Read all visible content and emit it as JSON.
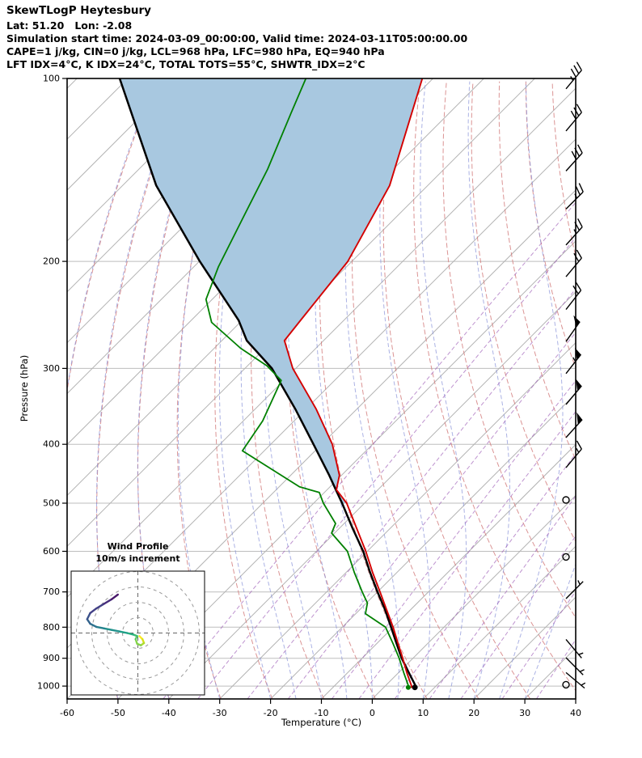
{
  "header": {
    "title": "SkewTLogP Heytesbury",
    "location": "Lat: 51.20   Lon: -2.08",
    "times": "Simulation start time: 2024-03-09_00:00:00, Valid time: 2024-03-11T05:00:00.00",
    "indices_line1": "CAPE=1 j/kg, CIN=0 j/kg, LCL=968 hPa, LFC=980 hPa, EQ=940 hPa",
    "indices_line2": "LFT IDX=4°C, K IDX=24°C, TOTAL TOTS=55°C, SHWTR_IDX=2°C"
  },
  "axes": {
    "xlabel": "Temperature (°C)",
    "ylabel": "Pressure (hPa)",
    "x_min": -60,
    "x_max": 40,
    "p_top": 100,
    "p_bottom": 1050,
    "x_ticks": [
      -60,
      -50,
      -40,
      -30,
      -20,
      -10,
      0,
      10,
      20,
      30,
      40
    ],
    "y_ticks": [
      100,
      200,
      300,
      400,
      500,
      600,
      700,
      800,
      900,
      1000
    ]
  },
  "chart_data": {
    "type": "line",
    "title": "SkewTLogP Heytesbury",
    "x_range_C": [
      -60,
      40
    ],
    "p_range_hPa": [
      1050,
      100
    ],
    "skew_angle_deg": 45,
    "grid": true,
    "series": [
      {
        "name": "temperature",
        "color": "#d40000",
        "width": 1.9,
        "points_p_hPa_T_C": [
          [
            1005,
            5.4
          ],
          [
            1000,
            5.2
          ],
          [
            950,
            1.6
          ],
          [
            900,
            -2.0
          ],
          [
            850,
            -5.9
          ],
          [
            800,
            -10.0
          ],
          [
            750,
            -14.6
          ],
          [
            700,
            -19.5
          ],
          [
            650,
            -24.8
          ],
          [
            600,
            -30.3
          ],
          [
            550,
            -36.6
          ],
          [
            500,
            -43.5
          ],
          [
            475,
            -48.2
          ],
          [
            450,
            -50.4
          ],
          [
            400,
            -57.9
          ],
          [
            350,
            -68.0
          ],
          [
            300,
            -80.6
          ],
          [
            270,
            -87.7
          ],
          [
            250,
            -88.5
          ],
          [
            200,
            -90.8
          ],
          [
            150,
            -97.5
          ],
          [
            100,
            -112.1
          ]
        ]
      },
      {
        "name": "dewpoint",
        "color": "#008000",
        "width": 1.8,
        "points_p_hPa_T_C": [
          [
            1005,
            4.8
          ],
          [
            1000,
            4.6
          ],
          [
            950,
            1.0
          ],
          [
            900,
            -2.7
          ],
          [
            850,
            -6.9
          ],
          [
            800,
            -11.5
          ],
          [
            760,
            -18.1
          ],
          [
            730,
            -19.8
          ],
          [
            700,
            -23.0
          ],
          [
            650,
            -28.4
          ],
          [
            600,
            -33.9
          ],
          [
            560,
            -40.6
          ],
          [
            540,
            -41.7
          ],
          [
            500,
            -48.1
          ],
          [
            480,
            -51.0
          ],
          [
            470,
            -56.0
          ],
          [
            410,
            -74.3
          ],
          [
            366,
            -76.2
          ],
          [
            314,
            -80.5
          ],
          [
            297,
            -86.2
          ],
          [
            278,
            -94.8
          ],
          [
            252,
            -105.6
          ],
          [
            231,
            -111.2
          ],
          [
            204,
            -115.2
          ],
          [
            170,
            -119.9
          ],
          [
            141,
            -124.7
          ],
          [
            114,
            -131.1
          ],
          [
            100,
            -135.0
          ]
        ]
      },
      {
        "name": "parcel",
        "color": "#000000",
        "width": 2.5,
        "points_p_hPa_T_C": [
          [
            1005,
            6.1
          ],
          [
            1000,
            6.0
          ],
          [
            950,
            2.0
          ],
          [
            900,
            -2.2
          ],
          [
            850,
            -6.2
          ],
          [
            800,
            -10.4
          ],
          [
            750,
            -14.9
          ],
          [
            700,
            -20.0
          ],
          [
            650,
            -25.3
          ],
          [
            600,
            -30.8
          ],
          [
            550,
            -37.4
          ],
          [
            500,
            -44.4
          ],
          [
            475,
            -48.3
          ],
          [
            450,
            -52.4
          ],
          [
            400,
            -61.6
          ],
          [
            350,
            -72.1
          ],
          [
            300,
            -84.7
          ],
          [
            270,
            -95.1
          ],
          [
            250,
            -100.7
          ],
          [
            200,
            -119.9
          ],
          [
            150,
            -143.4
          ],
          [
            100,
            -171.6
          ]
        ]
      }
    ],
    "shaded_region": {
      "between": [
        "parcel",
        "temperature"
      ],
      "p_from": 500,
      "p_to": 100,
      "color": "#a8c8e0",
      "opacity": 1
    },
    "wind_barbs_units": "m/s",
    "wind_barbs": [
      {
        "p": 104,
        "speed": 35,
        "dir": 40
      },
      {
        "p": 122,
        "speed": 30,
        "dir": 40
      },
      {
        "p": 142,
        "speed": 30,
        "dir": 42
      },
      {
        "p": 164,
        "speed": 25,
        "dir": 45
      },
      {
        "p": 188,
        "speed": 25,
        "dir": 42
      },
      {
        "p": 212,
        "speed": 20,
        "dir": 40
      },
      {
        "p": 240,
        "speed": 20,
        "dir": 38
      },
      {
        "p": 271,
        "speed": 50,
        "dir": 35
      },
      {
        "p": 306,
        "speed": 55,
        "dir": 38
      },
      {
        "p": 344,
        "speed": 50,
        "dir": 40
      },
      {
        "p": 390,
        "speed": 50,
        "dir": 42
      },
      {
        "p": 437,
        "speed": 15,
        "dir": 40
      },
      {
        "p": 494,
        "speed": 0,
        "dir": 0
      },
      {
        "p": 613,
        "speed": 0,
        "dir": 0
      },
      {
        "p": 718,
        "speed": 7.5,
        "dir": 45
      },
      {
        "p": 838,
        "speed": 5,
        "dir": 140
      },
      {
        "p": 898,
        "speed": 5,
        "dir": 135
      },
      {
        "p": 950,
        "speed": 2.5,
        "dir": 130
      },
      {
        "p": 995,
        "speed": 0,
        "dir": 0
      }
    ],
    "hodograph": {
      "title": "Wind Profile",
      "subtitle": "10m/s increment",
      "ring_increment_ms": 10,
      "rings_ms": [
        10,
        20,
        30,
        40
      ],
      "trace_uv_ms": [
        [
          1,
          -2
        ],
        [
          3,
          -4
        ],
        [
          4,
          -6.5
        ],
        [
          2,
          -8
        ],
        [
          -0.5,
          -7
        ],
        [
          -1.5,
          -4
        ],
        [
          -0.5,
          -2
        ],
        [
          -3,
          -1
        ],
        [
          -7,
          0
        ],
        [
          -12,
          1
        ],
        [
          -17,
          2
        ],
        [
          -22,
          3
        ],
        [
          -27,
          4
        ],
        [
          -31,
          6
        ],
        [
          -33,
          9
        ],
        [
          -31,
          13
        ],
        [
          -27,
          16
        ],
        [
          -22,
          19
        ],
        [
          -17,
          22
        ],
        [
          -13,
          25
        ]
      ],
      "height_palette": [
        "#fde725",
        "#d8e219",
        "#addc30",
        "#84d44b",
        "#5ec962",
        "#3fbc73",
        "#28ae80",
        "#1fa188",
        "#21918c",
        "#26828e",
        "#2c728e",
        "#33638d",
        "#3b528b",
        "#424086",
        "#472d7b",
        "#48186a"
      ]
    }
  },
  "background": {
    "isotherm_min": -180,
    "isotherm_max": 40,
    "isotherm_step": 10,
    "isobars_hPa": [
      100,
      200,
      300,
      400,
      500,
      600,
      700,
      800,
      900,
      1000
    ],
    "dry_adiabats_theta_K": [
      210,
      220,
      230,
      240,
      250,
      260,
      270,
      280,
      290,
      300,
      310,
      320,
      330,
      340,
      350,
      360,
      370,
      380
    ],
    "moist_adiabats_thetaw_C": [
      -60,
      -50,
      -40,
      -30,
      -20,
      -15,
      -10,
      -5,
      0,
      5,
      10,
      15,
      20,
      25,
      30
    ],
    "mixing_ratio_g_kg": [
      0.1,
      0.2,
      0.5,
      1,
      2,
      3,
      5,
      8,
      12,
      20,
      30
    ],
    "colors": {
      "isotherm": "#b3b3b3",
      "isobar": "#bdbdbd",
      "dry_adiabat": "#d27979",
      "moist_adiabat": "#8892d8",
      "mixing_ratio": "#9b59b6",
      "frame": "#000000"
    }
  }
}
